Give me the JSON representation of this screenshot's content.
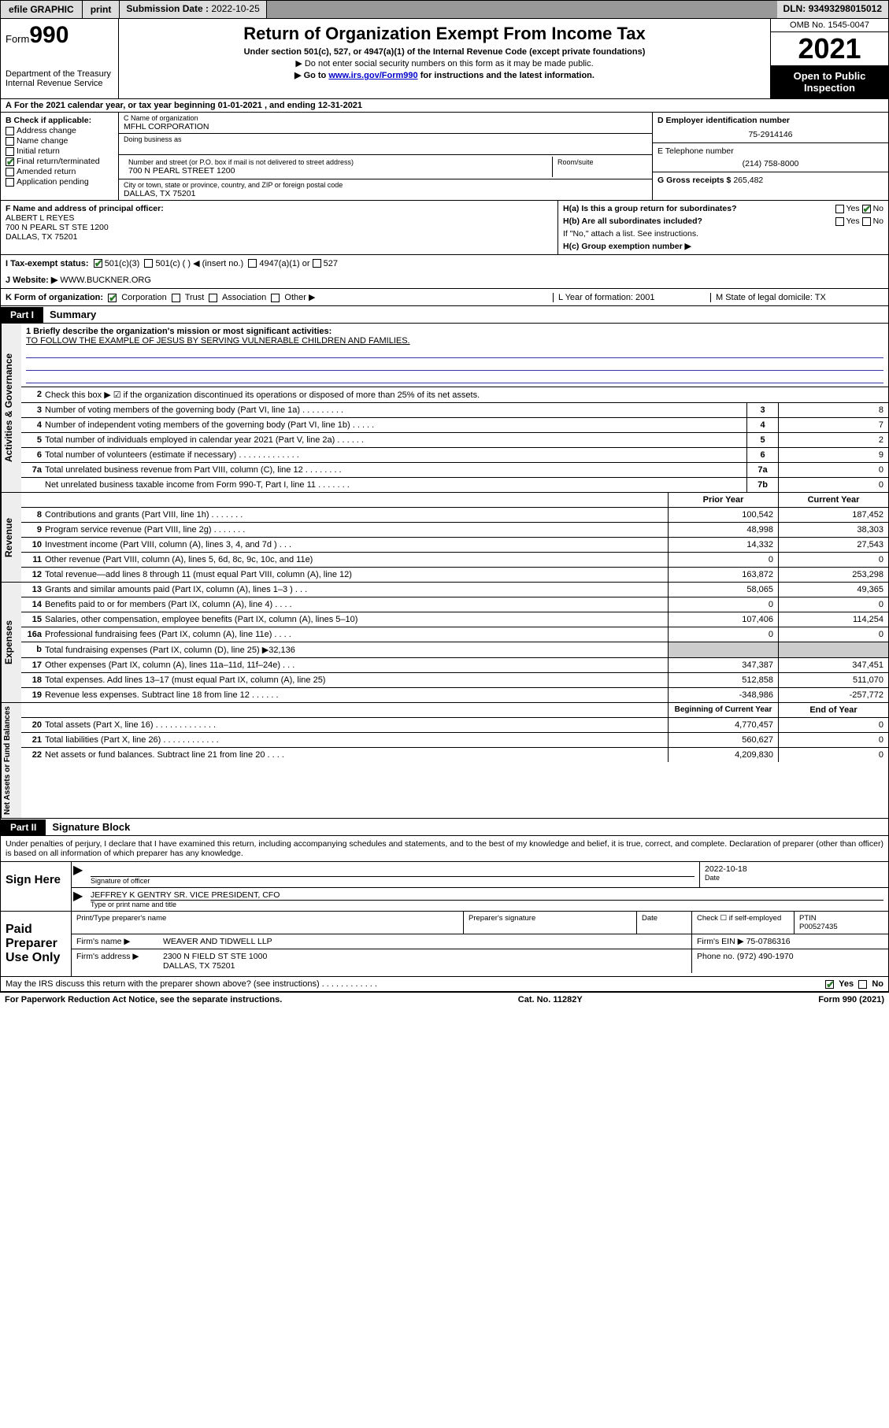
{
  "toolbar": {
    "efile": "efile GRAPHIC",
    "print": "print",
    "sub_label": "Submission Date :",
    "sub_date": "2022-10-25",
    "dln_label": "DLN:",
    "dln": "93493298015012"
  },
  "header": {
    "form_word": "Form",
    "form_num": "990",
    "dept": "Department of the Treasury",
    "irs": "Internal Revenue Service",
    "title": "Return of Organization Exempt From Income Tax",
    "sub1": "Under section 501(c), 527, or 4947(a)(1) of the Internal Revenue Code (except private foundations)",
    "sub2": "▶ Do not enter social security numbers on this form as it may be made public.",
    "sub3_pre": "▶ Go to ",
    "sub3_link": "www.irs.gov/Form990",
    "sub3_post": " for instructions and the latest information.",
    "omb": "OMB No. 1545-0047",
    "year": "2021",
    "inspect": "Open to Public Inspection"
  },
  "rowA": "For the 2021 calendar year, or tax year beginning 01-01-2021  , and ending 12-31-2021",
  "B": {
    "label": "B Check if applicable:",
    "items": [
      {
        "chk": false,
        "t": "Address change"
      },
      {
        "chk": false,
        "t": "Name change"
      },
      {
        "chk": false,
        "t": "Initial return"
      },
      {
        "chk": true,
        "t": "Final return/terminated"
      },
      {
        "chk": false,
        "t": "Amended return"
      },
      {
        "chk": false,
        "t": "Application pending"
      }
    ]
  },
  "C": {
    "name_lbl": "C Name of organization",
    "name": "MFHL CORPORATION",
    "dba_lbl": "Doing business as",
    "dba": "",
    "addr_lbl": "Number and street (or P.O. box if mail is not delivered to street address)",
    "room_lbl": "Room/suite",
    "addr": "700 N PEARL STREET 1200",
    "city_lbl": "City or town, state or province, country, and ZIP or foreign postal code",
    "city": "DALLAS, TX  75201"
  },
  "D": {
    "lbl": "D Employer identification number",
    "val": "75-2914146"
  },
  "E": {
    "lbl": "E Telephone number",
    "val": "(214) 758-8000"
  },
  "G": {
    "lbl": "G Gross receipts $",
    "val": "265,482"
  },
  "F": {
    "lbl": "F  Name and address of principal officer:",
    "name": "ALBERT L REYES",
    "addr": "700 N PEARL ST STE 1200",
    "city": "DALLAS, TX  75201"
  },
  "H": {
    "a": "H(a)  Is this a group return for subordinates?",
    "a_yes": "Yes",
    "a_no": "No",
    "b": "H(b)  Are all subordinates included?",
    "b_yes": "Yes",
    "b_no": "No",
    "b_note": "If \"No,\" attach a list. See instructions.",
    "c": "H(c)  Group exemption number ▶"
  },
  "I": {
    "lbl": "I     Tax-exempt status:",
    "o1": "501(c)(3)",
    "o2": "501(c) (   ) ◀ (insert no.)",
    "o3": "4947(a)(1) or",
    "o4": "527"
  },
  "J": {
    "lbl": "J     Website: ▶",
    "val": "WWW.BUCKNER.ORG"
  },
  "K": {
    "lbl": "K Form of organization:",
    "o1": "Corporation",
    "o2": "Trust",
    "o3": "Association",
    "o4": "Other ▶",
    "L": "L Year of formation: 2001",
    "M": "M State of legal domicile: TX"
  },
  "partI": {
    "tag": "Part I",
    "title": "Summary"
  },
  "mission": {
    "lbl": "1   Briefly describe the organization's mission or most significant activities:",
    "text": "TO FOLLOW THE EXAMPLE OF JESUS BY SERVING VULNERABLE CHILDREN AND FAMILIES."
  },
  "gov": {
    "vlabel": "Activities & Governance",
    "rows": [
      {
        "n": "2",
        "d": "Check this box ▶ ☑  if the organization discontinued its operations or disposed of more than 25% of its net assets.",
        "box": "",
        "v": ""
      },
      {
        "n": "3",
        "d": "Number of voting members of the governing body (Part VI, line 1a)  .  .  .  .  .  .  .  .  .",
        "box": "3",
        "v": "8"
      },
      {
        "n": "4",
        "d": "Number of independent voting members of the governing body (Part VI, line 1b)  .  .  .  .  .",
        "box": "4",
        "v": "7"
      },
      {
        "n": "5",
        "d": "Total number of individuals employed in calendar year 2021 (Part V, line 2a)  .  .  .  .  .  .",
        "box": "5",
        "v": "2"
      },
      {
        "n": "6",
        "d": "Total number of volunteers (estimate if necessary)  .  .  .  .  .  .  .  .  .  .  .  .  .",
        "box": "6",
        "v": "9"
      },
      {
        "n": "7a",
        "d": "Total unrelated business revenue from Part VIII, column (C), line 12  .  .  .  .  .  .  .  .",
        "box": "7a",
        "v": "0"
      },
      {
        "n": "",
        "d": "Net unrelated business taxable income from Form 990-T, Part I, line 11  .  .  .  .  .  .  .",
        "box": "7b",
        "v": "0"
      }
    ]
  },
  "rev": {
    "vlabel": "Revenue",
    "head_prior": "Prior Year",
    "head_curr": "Current Year",
    "rows": [
      {
        "n": "8",
        "d": "Contributions and grants (Part VIII, line 1h)  .  .  .  .  .  .  .",
        "p": "100,542",
        "c": "187,452"
      },
      {
        "n": "9",
        "d": "Program service revenue (Part VIII, line 2g)  .  .  .  .  .  .  .",
        "p": "48,998",
        "c": "38,303"
      },
      {
        "n": "10",
        "d": "Investment income (Part VIII, column (A), lines 3, 4, and 7d )  .  .  .",
        "p": "14,332",
        "c": "27,543"
      },
      {
        "n": "11",
        "d": "Other revenue (Part VIII, column (A), lines 5, 6d, 8c, 9c, 10c, and 11e)",
        "p": "0",
        "c": "0"
      },
      {
        "n": "12",
        "d": "Total revenue—add lines 8 through 11 (must equal Part VIII, column (A), line 12)",
        "p": "163,872",
        "c": "253,298"
      }
    ]
  },
  "exp": {
    "vlabel": "Expenses",
    "rows": [
      {
        "n": "13",
        "d": "Grants and similar amounts paid (Part IX, column (A), lines 1–3 )  .  .  .",
        "p": "58,065",
        "c": "49,365"
      },
      {
        "n": "14",
        "d": "Benefits paid to or for members (Part IX, column (A), line 4)  .  .  .  .",
        "p": "0",
        "c": "0"
      },
      {
        "n": "15",
        "d": "Salaries, other compensation, employee benefits (Part IX, column (A), lines 5–10)",
        "p": "107,406",
        "c": "114,254"
      },
      {
        "n": "16a",
        "d": "Professional fundraising fees (Part IX, column (A), line 11e)  .  .  .  .",
        "p": "0",
        "c": "0"
      },
      {
        "n": "b",
        "d": "Total fundraising expenses (Part IX, column (D), line 25) ▶32,136",
        "p": "shade",
        "c": "shade"
      },
      {
        "n": "17",
        "d": "Other expenses (Part IX, column (A), lines 11a–11d, 11f–24e)  .  .  .",
        "p": "347,387",
        "c": "347,451"
      },
      {
        "n": "18",
        "d": "Total expenses. Add lines 13–17 (must equal Part IX, column (A), line 25)",
        "p": "512,858",
        "c": "511,070"
      },
      {
        "n": "19",
        "d": "Revenue less expenses. Subtract line 18 from line 12  .  .  .  .  .  .",
        "p": "-348,986",
        "c": "-257,772"
      }
    ]
  },
  "net": {
    "vlabel": "Net Assets or Fund Balances",
    "head_begin": "Beginning of Current Year",
    "head_end": "End of Year",
    "rows": [
      {
        "n": "20",
        "d": "Total assets (Part X, line 16)  .  .  .  .  .  .  .  .  .  .  .  .  .",
        "p": "4,770,457",
        "c": "0"
      },
      {
        "n": "21",
        "d": "Total liabilities (Part X, line 26)  .  .  .  .  .  .  .  .  .  .  .  .",
        "p": "560,627",
        "c": "0"
      },
      {
        "n": "22",
        "d": "Net assets or fund balances. Subtract line 21 from line 20  .  .  .  .",
        "p": "4,209,830",
        "c": "0"
      }
    ]
  },
  "partII": {
    "tag": "Part II",
    "title": "Signature Block"
  },
  "sig_intro": "Under penalties of perjury, I declare that I have examined this return, including accompanying schedules and statements, and to the best of my knowledge and belief, it is true, correct, and complete. Declaration of preparer (other than officer) is based on all information of which preparer has any knowledge.",
  "sign": {
    "lab": "Sign Here",
    "sig_lbl": "Signature of officer",
    "date": "2022-10-18",
    "date_lbl": "Date",
    "name": "JEFFREY K GENTRY SR. VICE PRESIDENT, CFO",
    "name_lbl": "Type or print name and title"
  },
  "paid": {
    "lab": "Paid Preparer Use Only",
    "h_name": "Print/Type preparer's name",
    "h_sig": "Preparer's signature",
    "h_date": "Date",
    "h_check": "Check ☐ if self-employed",
    "h_ptin_lbl": "PTIN",
    "h_ptin": "P00527435",
    "firm_lbl": "Firm's name    ▶",
    "firm": "WEAVER AND TIDWELL LLP",
    "ein_lbl": "Firm's EIN ▶",
    "ein": "75-0786316",
    "addr_lbl": "Firm's address ▶",
    "addr1": "2300 N FIELD ST STE 1000",
    "addr2": "DALLAS, TX  75201",
    "phone_lbl": "Phone no.",
    "phone": "(972) 490-1970"
  },
  "discuss": {
    "q": "May the IRS discuss this return with the preparer shown above? (see instructions)  .  .  .  .  .  .  .  .  .  .  .  .",
    "yes": "Yes",
    "no": "No"
  },
  "footer": {
    "l": "For Paperwork Reduction Act Notice, see the separate instructions.",
    "m": "Cat. No. 11282Y",
    "r": "Form 990 (2021)"
  }
}
